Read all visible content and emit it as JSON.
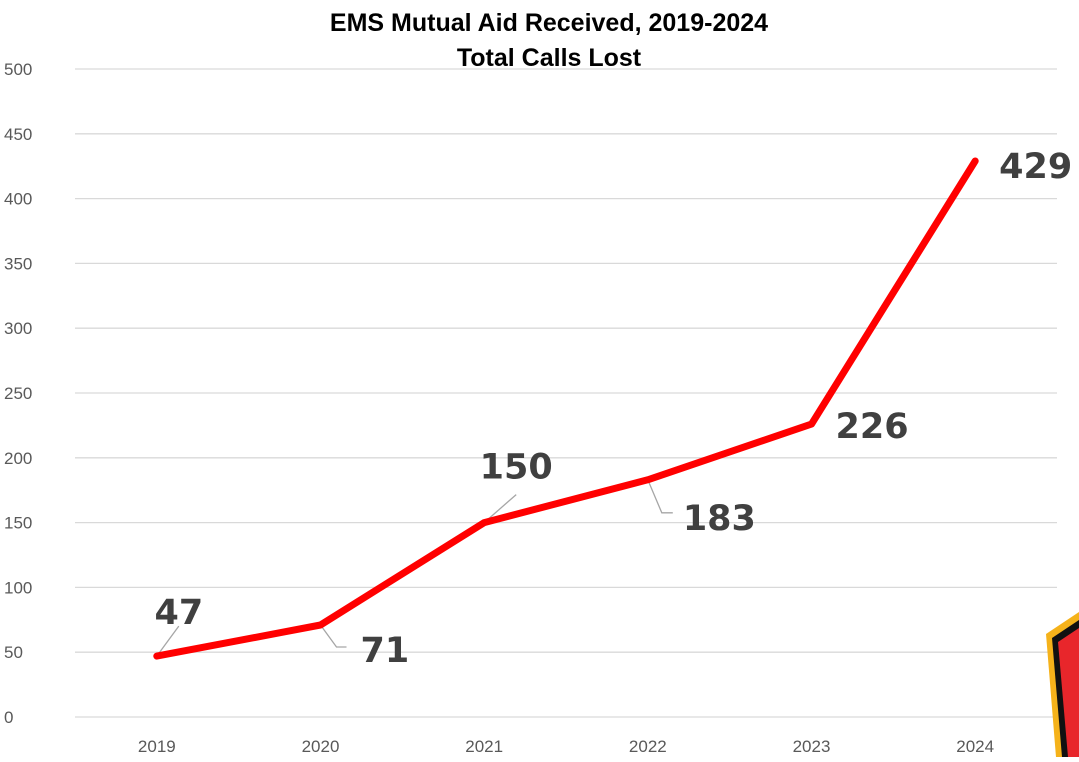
{
  "chart_data": {
    "type": "line",
    "title": "EMS Mutual Aid Received, 2019-2024",
    "subtitle": "Total Calls Lost",
    "xlabel": "",
    "ylabel": "",
    "categories": [
      "2019",
      "2020",
      "2021",
      "2022",
      "2023",
      "2024"
    ],
    "series": [
      {
        "values": [
          47,
          71,
          150,
          183,
          226,
          429
        ],
        "color": "#ff0000"
      }
    ],
    "data_labels": [
      "47",
      "71",
      "150",
      "183",
      "226",
      "429"
    ],
    "ylim": [
      0,
      500
    ],
    "yticks": [
      "0",
      "50",
      "100",
      "150",
      "200",
      "250",
      "300",
      "350",
      "400",
      "450",
      "500"
    ],
    "grid": true,
    "legend": "none"
  },
  "colors": {
    "line": "#ff0000",
    "grid": "#d9d9d9",
    "tick_text": "#595959",
    "data_label": "#404040",
    "logo_fill": "#e8262b",
    "logo_border": "#f5b21a"
  },
  "decoration": {
    "corner_logo": "partial-badge-icon"
  }
}
